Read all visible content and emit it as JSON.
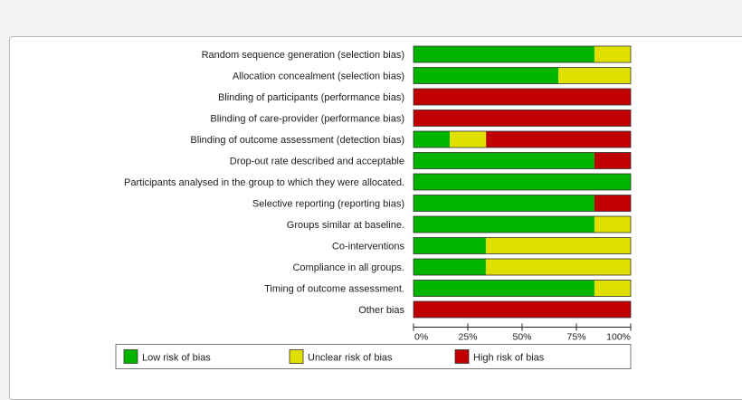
{
  "chart_data": {
    "type": "bar",
    "stacked": true,
    "orientation": "horizontal",
    "title": "",
    "xlabel": "",
    "ylabel": "",
    "xlim": [
      0,
      100
    ],
    "ticks": [
      "0%",
      "25%",
      "50%",
      "75%",
      "100%"
    ],
    "categories": [
      "Random sequence generation (selection bias)",
      "Allocation concealment (selection bias)",
      "Blinding of participants (performance bias)",
      "Blinding of care-provider (performance bias)",
      "Blinding of outcome assessment (detection bias)",
      "Drop-out rate described and acceptable",
      "Participants analysed in the group to which they were allocated.",
      "Selective reporting (reporting bias)",
      "Groups similar at baseline.",
      "Co-interventions",
      "Compliance in all groups.",
      "Timing of outcome assessment.",
      "Other bias"
    ],
    "series": [
      {
        "name": "Low risk of bias",
        "color": "#00b400",
        "values": [
          83.3,
          66.7,
          0,
          0,
          16.7,
          83.3,
          100,
          83.3,
          83.3,
          33.3,
          33.3,
          83.3,
          0
        ]
      },
      {
        "name": "Unclear risk of bias",
        "color": "#e0e000",
        "values": [
          16.7,
          33.3,
          0,
          0,
          16.7,
          0,
          0,
          0,
          16.7,
          66.7,
          66.7,
          16.7,
          0
        ]
      },
      {
        "name": "High risk of bias",
        "color": "#c00000",
        "values": [
          0,
          0,
          100,
          100,
          66.6,
          16.7,
          0,
          16.7,
          0,
          0,
          0,
          0,
          100
        ]
      }
    ],
    "legend_position": "bottom",
    "grid": false
  }
}
